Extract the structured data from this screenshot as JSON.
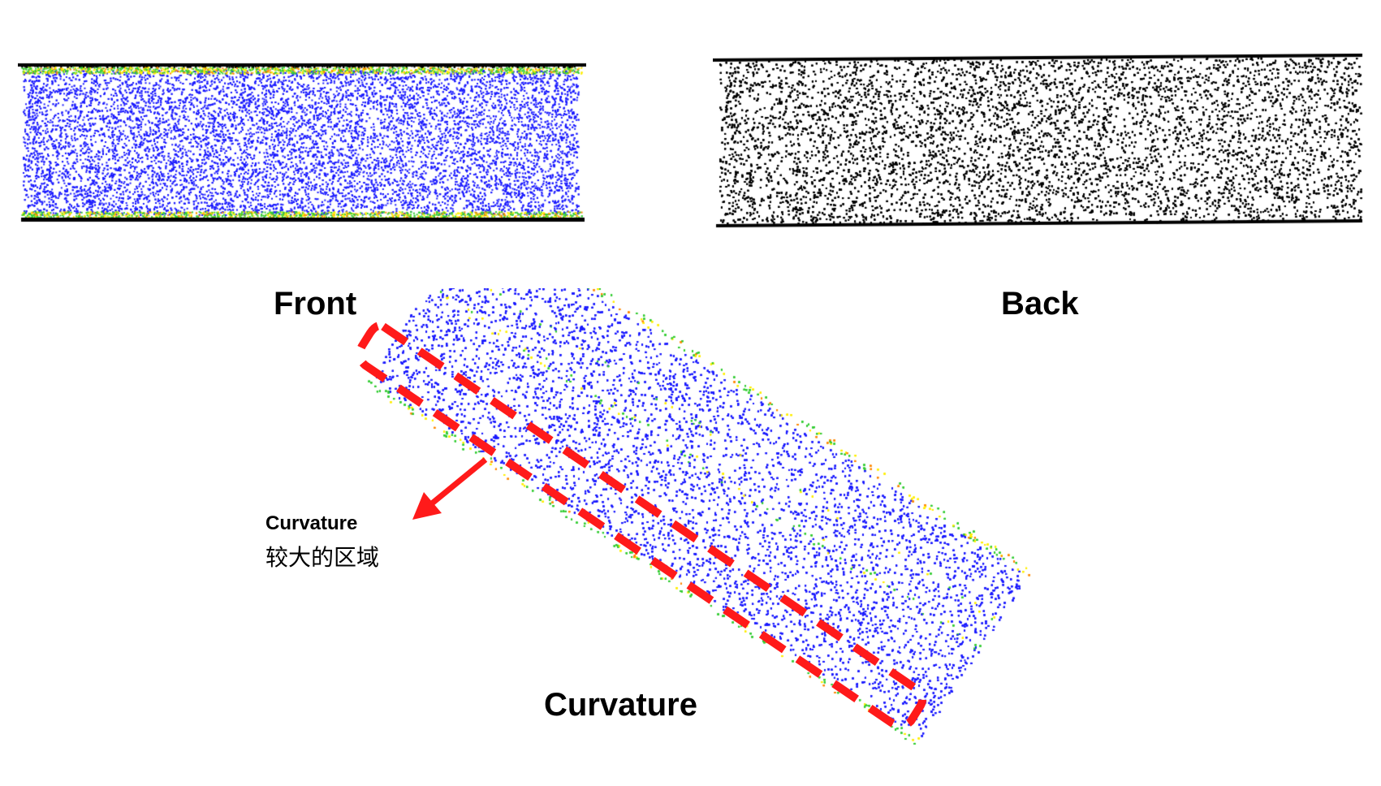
{
  "labels": {
    "front": "Front",
    "back": "Back",
    "curvature": "Curvature"
  },
  "annotation": {
    "line1": "Curvature",
    "line2": "较大的区域"
  },
  "colors": {
    "point_base": "#1a1aff",
    "point_back": "#000000",
    "edge_green": "#33cc33",
    "edge_yellow": "#ffee00",
    "edge_orange": "#ff8800",
    "highlight": "#ff1a1a"
  }
}
